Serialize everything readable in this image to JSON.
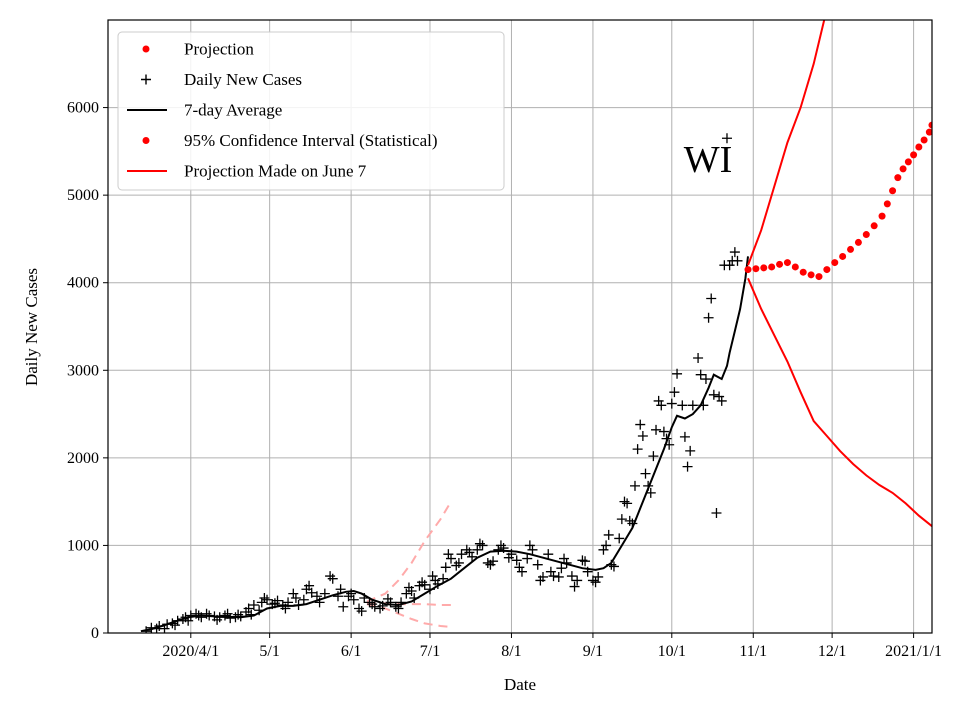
{
  "chart_data": {
    "type": "line",
    "title": "",
    "annotation": "WI",
    "xlabel": "Date",
    "ylabel": "Daily New Cases",
    "ylim": [
      0,
      7000
    ],
    "yticks": [
      0,
      1000,
      2000,
      3000,
      4000,
      5000,
      6000
    ],
    "x_unit": "days since 2020-03-01",
    "xlim": [
      -0.5,
      313
    ],
    "xticks": [
      {
        "day": 31,
        "label": "2020/4/1"
      },
      {
        "day": 61,
        "label": "5/1"
      },
      {
        "day": 92,
        "label": "6/1"
      },
      {
        "day": 122,
        "label": "7/1"
      },
      {
        "day": 153,
        "label": "8/1"
      },
      {
        "day": 184,
        "label": "9/1"
      },
      {
        "day": 214,
        "label": "10/1"
      },
      {
        "day": 245,
        "label": "11/1"
      },
      {
        "day": 275,
        "label": "12/1"
      },
      {
        "day": 306,
        "label": "2021/1/1"
      }
    ],
    "grid": true,
    "legend": {
      "location": "top-left",
      "entries": [
        {
          "label": "Projection",
          "color": "#ff0000",
          "marker": "dot"
        },
        {
          "label": "Daily New Cases",
          "color": "#000000",
          "marker": "plus"
        },
        {
          "label": "7-day Average",
          "color": "#000000",
          "marker": "line"
        },
        {
          "label": "95% Confidence Interval (Statistical)",
          "color": "#ff0000",
          "marker": "dot"
        },
        {
          "label": "Projection Made on June 7",
          "color": "#ff0000",
          "marker": "line"
        }
      ]
    },
    "series": [
      {
        "name": "7-day Average",
        "color": "#000000",
        "points": [
          [
            12,
            20
          ],
          [
            16,
            45
          ],
          [
            20,
            80
          ],
          [
            25,
            130
          ],
          [
            30,
            180
          ],
          [
            35,
            200
          ],
          [
            40,
            190
          ],
          [
            45,
            185
          ],
          [
            50,
            180
          ],
          [
            55,
            200
          ],
          [
            60,
            280
          ],
          [
            65,
            310
          ],
          [
            70,
            310
          ],
          [
            75,
            330
          ],
          [
            80,
            380
          ],
          [
            85,
            430
          ],
          [
            90,
            470
          ],
          [
            93,
            480
          ],
          [
            96,
            450
          ],
          [
            100,
            380
          ],
          [
            105,
            330
          ],
          [
            110,
            320
          ],
          [
            115,
            360
          ],
          [
            120,
            450
          ],
          [
            125,
            540
          ],
          [
            130,
            620
          ],
          [
            135,
            740
          ],
          [
            140,
            860
          ],
          [
            145,
            930
          ],
          [
            150,
            940
          ],
          [
            155,
            930
          ],
          [
            160,
            900
          ],
          [
            165,
            860
          ],
          [
            170,
            820
          ],
          [
            175,
            780
          ],
          [
            180,
            740
          ],
          [
            185,
            720
          ],
          [
            188,
            740
          ],
          [
            191,
            800
          ],
          [
            195,
            1000
          ],
          [
            199,
            1200
          ],
          [
            203,
            1500
          ],
          [
            207,
            1800
          ],
          [
            211,
            2100
          ],
          [
            214,
            2350
          ],
          [
            216,
            2480
          ],
          [
            219,
            2450
          ],
          [
            222,
            2500
          ],
          [
            225,
            2600
          ],
          [
            228,
            2800
          ],
          [
            230,
            2950
          ],
          [
            233,
            2900
          ],
          [
            235,
            3050
          ],
          [
            236,
            3200
          ],
          [
            238,
            3450
          ],
          [
            240,
            3700
          ],
          [
            242,
            4050
          ],
          [
            243,
            4300
          ]
        ]
      },
      {
        "name": "Projection",
        "color": "#ff0000",
        "points": [
          [
            243,
            4150
          ],
          [
            246,
            4160
          ],
          [
            249,
            4170
          ],
          [
            252,
            4180
          ],
          [
            255,
            4210
          ],
          [
            258,
            4230
          ],
          [
            261,
            4180
          ],
          [
            264,
            4120
          ],
          [
            267,
            4090
          ],
          [
            270,
            4070
          ],
          [
            273,
            4150
          ],
          [
            276,
            4230
          ],
          [
            279,
            4300
          ],
          [
            282,
            4380
          ],
          [
            285,
            4460
          ],
          [
            288,
            4550
          ],
          [
            291,
            4650
          ],
          [
            294,
            4760
          ],
          [
            296,
            4900
          ],
          [
            298,
            5050
          ],
          [
            300,
            5200
          ],
          [
            302,
            5300
          ],
          [
            304,
            5380
          ],
          [
            306,
            5460
          ],
          [
            308,
            5550
          ],
          [
            310,
            5630
          ],
          [
            312,
            5720
          ],
          [
            313,
            5800
          ]
        ]
      },
      {
        "name": "95% CI upper",
        "color": "#ff0000",
        "points": [
          [
            243,
            4200
          ],
          [
            248,
            4600
          ],
          [
            253,
            5100
          ],
          [
            258,
            5600
          ],
          [
            263,
            6000
          ],
          [
            268,
            6500
          ],
          [
            272,
            7000
          ],
          [
            274,
            7300
          ]
        ]
      },
      {
        "name": "95% CI lower",
        "color": "#ff0000",
        "points": [
          [
            243,
            4050
          ],
          [
            248,
            3700
          ],
          [
            253,
            3400
          ],
          [
            258,
            3100
          ],
          [
            263,
            2750
          ],
          [
            268,
            2420
          ],
          [
            273,
            2250
          ],
          [
            278,
            2080
          ],
          [
            283,
            1930
          ],
          [
            288,
            1800
          ],
          [
            293,
            1690
          ],
          [
            298,
            1600
          ],
          [
            303,
            1480
          ],
          [
            308,
            1340
          ],
          [
            313,
            1220
          ]
        ]
      },
      {
        "name": "Projection Made on June 7",
        "color": "#ffaaaa",
        "dashed": true,
        "lines": [
          [
            [
              98,
              360
            ],
            [
              105,
              450
            ],
            [
              110,
              600
            ],
            [
              115,
              800
            ],
            [
              120,
              1050
            ],
            [
              126,
              1300
            ],
            [
              130,
              1500
            ]
          ],
          [
            [
              98,
              340
            ],
            [
              105,
              340
            ],
            [
              110,
              330
            ],
            [
              115,
              330
            ],
            [
              120,
              330
            ],
            [
              126,
              320
            ],
            [
              130,
              320
            ]
          ],
          [
            [
              98,
              330
            ],
            [
              105,
              280
            ],
            [
              110,
              220
            ],
            [
              115,
              160
            ],
            [
              120,
              110
            ],
            [
              126,
              80
            ],
            [
              130,
              70
            ]
          ]
        ]
      }
    ],
    "scatter": {
      "name": "Daily New Cases",
      "marker": "plus",
      "color": "#000000",
      "points": [
        [
          14,
          20
        ],
        [
          16,
          60
        ],
        [
          18,
          50
        ],
        [
          19,
          80
        ],
        [
          21,
          50
        ],
        [
          22,
          100
        ],
        [
          24,
          110
        ],
        [
          25,
          90
        ],
        [
          26,
          140
        ],
        [
          28,
          160
        ],
        [
          29,
          180
        ],
        [
          30,
          140
        ],
        [
          31,
          200
        ],
        [
          33,
          220
        ],
        [
          34,
          200
        ],
        [
          35,
          180
        ],
        [
          37,
          220
        ],
        [
          38,
          200
        ],
        [
          40,
          190
        ],
        [
          41,
          150
        ],
        [
          42,
          180
        ],
        [
          44,
          200
        ],
        [
          45,
          220
        ],
        [
          46,
          170
        ],
        [
          48,
          180
        ],
        [
          49,
          210
        ],
        [
          50,
          190
        ],
        [
          52,
          240
        ],
        [
          53,
          280
        ],
        [
          54,
          210
        ],
        [
          55,
          320
        ],
        [
          57,
          260
        ],
        [
          58,
          350
        ],
        [
          59,
          400
        ],
        [
          60,
          380
        ],
        [
          62,
          330
        ],
        [
          63,
          340
        ],
        [
          64,
          370
        ],
        [
          66,
          320
        ],
        [
          67,
          280
        ],
        [
          68,
          350
        ],
        [
          70,
          450
        ],
        [
          71,
          400
        ],
        [
          72,
          320
        ],
        [
          74,
          380
        ],
        [
          75,
          500
        ],
        [
          76,
          540
        ],
        [
          77,
          460
        ],
        [
          79,
          420
        ],
        [
          80,
          350
        ],
        [
          82,
          450
        ],
        [
          84,
          650
        ],
        [
          85,
          620
        ],
        [
          87,
          420
        ],
        [
          88,
          500
        ],
        [
          89,
          300
        ],
        [
          91,
          420
        ],
        [
          92,
          450
        ],
        [
          93,
          380
        ],
        [
          95,
          280
        ],
        [
          96,
          250
        ],
        [
          97,
          400
        ],
        [
          99,
          350
        ],
        [
          100,
          330
        ],
        [
          101,
          300
        ],
        [
          103,
          280
        ],
        [
          104,
          310
        ],
        [
          106,
          390
        ],
        [
          107,
          350
        ],
        [
          109,
          300
        ],
        [
          110,
          280
        ],
        [
          111,
          350
        ],
        [
          113,
          450
        ],
        [
          114,
          520
        ],
        [
          115,
          480
        ],
        [
          116,
          400
        ],
        [
          118,
          540
        ],
        [
          119,
          580
        ],
        [
          120,
          550
        ],
        [
          122,
          500
        ],
        [
          123,
          650
        ],
        [
          124,
          600
        ],
        [
          125,
          560
        ],
        [
          127,
          620
        ],
        [
          128,
          750
        ],
        [
          129,
          900
        ],
        [
          130,
          850
        ],
        [
          132,
          770
        ],
        [
          133,
          800
        ],
        [
          134,
          900
        ],
        [
          136,
          950
        ],
        [
          137,
          920
        ],
        [
          138,
          870
        ],
        [
          140,
          950
        ],
        [
          141,
          1020
        ],
        [
          142,
          1000
        ],
        [
          144,
          800
        ],
        [
          145,
          780
        ],
        [
          146,
          820
        ],
        [
          148,
          950
        ],
        [
          149,
          1000
        ],
        [
          150,
          970
        ],
        [
          152,
          860
        ],
        [
          153,
          900
        ],
        [
          155,
          830
        ],
        [
          156,
          750
        ],
        [
          157,
          700
        ],
        [
          159,
          850
        ],
        [
          160,
          1000
        ],
        [
          161,
          950
        ],
        [
          163,
          780
        ],
        [
          164,
          600
        ],
        [
          165,
          640
        ],
        [
          167,
          900
        ],
        [
          168,
          700
        ],
        [
          169,
          650
        ],
        [
          171,
          640
        ],
        [
          172,
          740
        ],
        [
          173,
          850
        ],
        [
          174,
          800
        ],
        [
          176,
          650
        ],
        [
          177,
          530
        ],
        [
          178,
          600
        ],
        [
          180,
          830
        ],
        [
          181,
          820
        ],
        [
          182,
          700
        ],
        [
          184,
          600
        ],
        [
          185,
          580
        ],
        [
          186,
          640
        ],
        [
          188,
          950
        ],
        [
          189,
          1000
        ],
        [
          190,
          1120
        ],
        [
          191,
          780
        ],
        [
          192,
          760
        ],
        [
          194,
          1080
        ],
        [
          195,
          1300
        ],
        [
          196,
          1500
        ],
        [
          197,
          1480
        ],
        [
          198,
          1280
        ],
        [
          199,
          1250
        ],
        [
          200,
          1680
        ],
        [
          201,
          2100
        ],
        [
          202,
          2380
        ],
        [
          203,
          2250
        ],
        [
          204,
          1820
        ],
        [
          205,
          1680
        ],
        [
          206,
          1600
        ],
        [
          207,
          2020
        ],
        [
          208,
          2320
        ],
        [
          209,
          2650
        ],
        [
          210,
          2600
        ],
        [
          211,
          2300
        ],
        [
          212,
          2220
        ],
        [
          213,
          2150
        ],
        [
          214,
          2620
        ],
        [
          215,
          2750
        ],
        [
          216,
          2960
        ],
        [
          218,
          2600
        ],
        [
          219,
          2240
        ],
        [
          220,
          1900
        ],
        [
          221,
          2080
        ],
        [
          222,
          2600
        ],
        [
          224,
          3140
        ],
        [
          225,
          2950
        ],
        [
          226,
          2600
        ],
        [
          227,
          2900
        ],
        [
          228,
          3600
        ],
        [
          229,
          3820
        ],
        [
          230,
          2720
        ],
        [
          231,
          1370
        ],
        [
          232,
          2700
        ],
        [
          233,
          2650
        ],
        [
          234,
          4200
        ],
        [
          235,
          5650
        ],
        [
          236,
          4200
        ],
        [
          237,
          4250
        ],
        [
          238,
          4350
        ],
        [
          239,
          4250
        ]
      ]
    }
  }
}
